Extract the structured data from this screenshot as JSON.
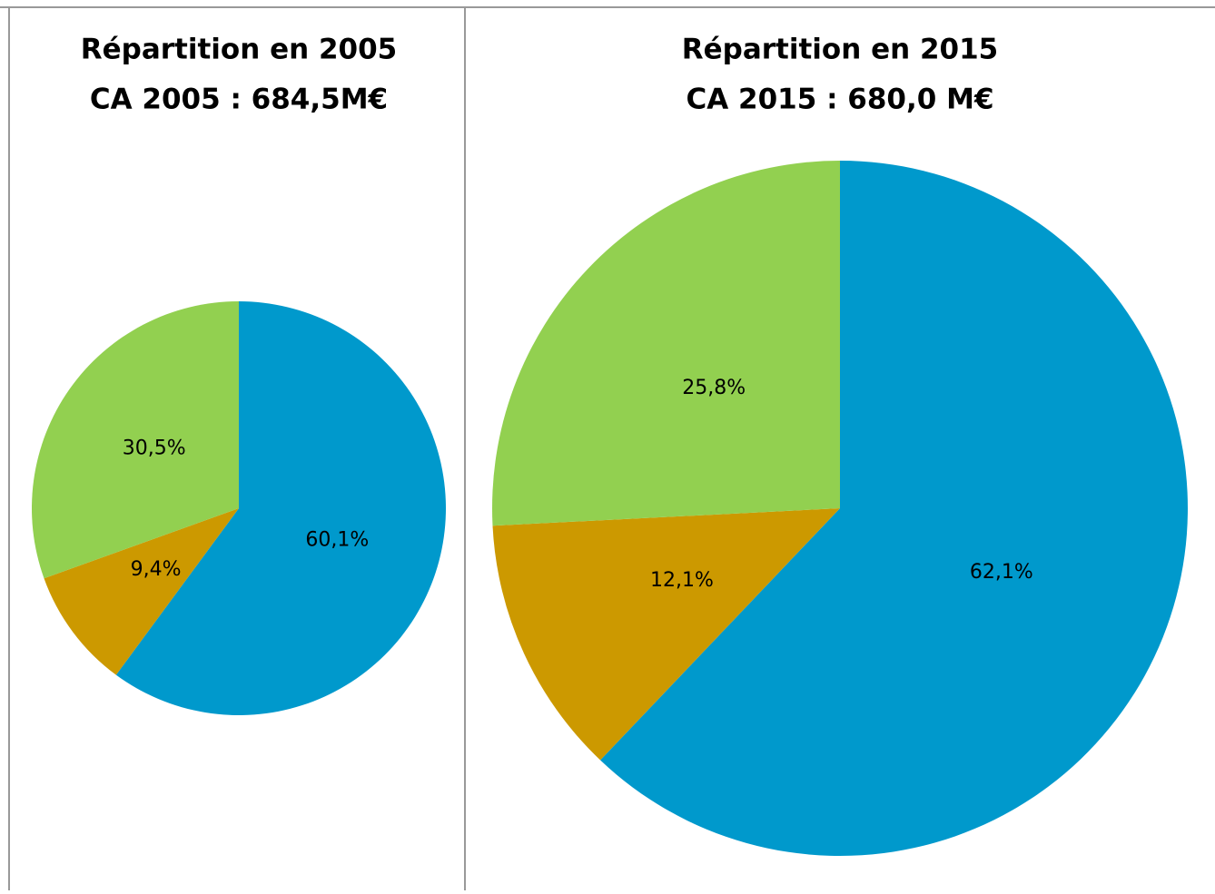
{
  "chart_data": [
    {
      "type": "pie",
      "title": "Répartition en 2005",
      "subtitle": "CA 2005 : 684,5M€",
      "values": [
        60.1,
        9.4,
        30.5
      ],
      "value_labels": [
        "60,1%",
        "9,4%",
        "30,5%"
      ],
      "colors": [
        "#0099cc",
        "#cc9900",
        "#92d050"
      ]
    },
    {
      "type": "pie",
      "title": "Répartition en 2015",
      "subtitle": "CA 2015 : 680,0 M€",
      "values": [
        62.1,
        12.1,
        25.8
      ],
      "value_labels": [
        "62,1%",
        "12,1%",
        "25,8%"
      ],
      "colors": [
        "#0099cc",
        "#cc9900",
        "#92d050"
      ]
    }
  ]
}
